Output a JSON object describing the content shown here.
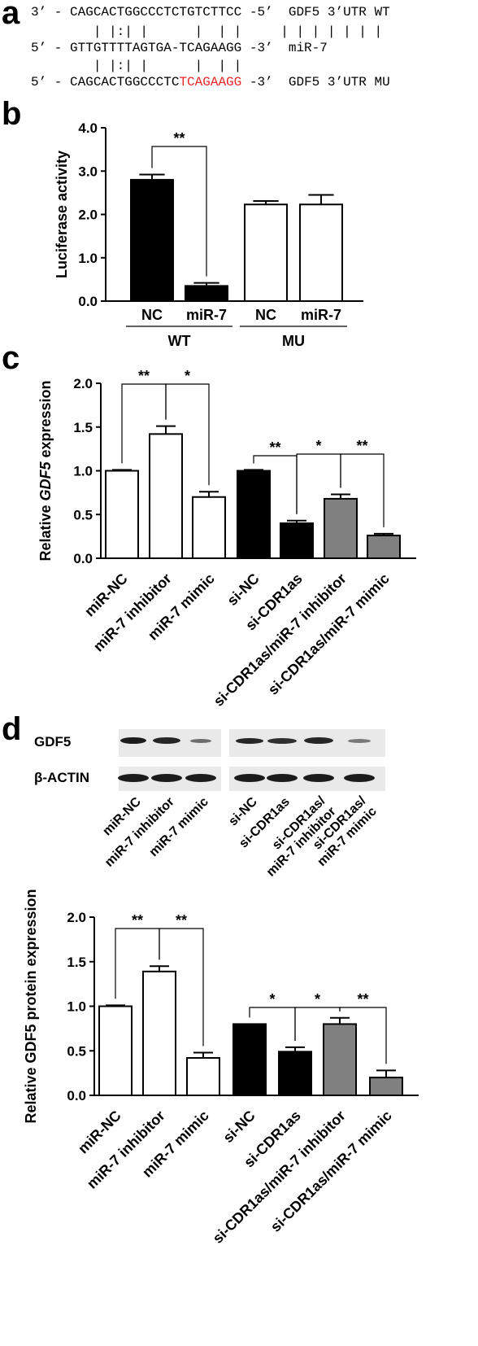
{
  "panel_a": {
    "label": "a",
    "rows": [
      {
        "pre": "3’ - CAGCACTGGCCCTCTGTCTTCC -5’  GDF5 3’UTR WT",
        "red": "",
        "post": ""
      },
      {
        "pre": "        | |:| |      |  | |     | | | | | | |",
        "red": "",
        "post": ""
      },
      {
        "pre": "5’ - GTTGTTTTAGTGA-TCAGAAGG -3’  miR-7",
        "red": "",
        "post": ""
      },
      {
        "pre": "        | |:| |      |  | |",
        "red": "",
        "post": ""
      },
      {
        "pre": "5’ - CAGCACTGGCCCTC",
        "red": "TCAGAAGG",
        "post": " -3’  GDF5 3’UTR MU"
      }
    ]
  },
  "panel_b": {
    "label": "b"
  },
  "panel_c": {
    "label": "c"
  },
  "panel_d": {
    "label": "d",
    "blot_rows": [
      "GDF5",
      "β-ACTIN"
    ],
    "blot_lanes": [
      "miR-NC",
      "miR-7 inhibitor",
      "miR-7 mimic",
      "si-NC",
      "si-CDR1as",
      "si-CDR1as/\nmiR-7 inhibitor",
      "si-CDR1as/\nmiR-7 mimic"
    ]
  },
  "chart_data": [
    {
      "type": "bar",
      "id": "b",
      "categories": [
        "NC",
        "miR-7",
        "NC",
        "miR-7"
      ],
      "groups": [
        {
          "label": "WT",
          "members": [
            0,
            1
          ]
        },
        {
          "label": "MU",
          "members": [
            2,
            3
          ]
        }
      ],
      "values": [
        2.8,
        0.35,
        2.23,
        2.23
      ],
      "errors": [
        0.12,
        0.07,
        0.08,
        0.22
      ],
      "colors": [
        "#000000",
        "#000000",
        "#ffffff",
        "#ffffff"
      ],
      "ylabel": "Luciferase activity",
      "ylim": [
        0,
        4.0
      ],
      "yticks": [
        "0.0",
        "1.0",
        "2.0",
        "3.0",
        "4.0"
      ],
      "significance": [
        {
          "from": 0,
          "to": 1,
          "label": "**"
        }
      ]
    },
    {
      "type": "bar",
      "id": "c",
      "categories": [
        "miR-NC",
        "miR-7 inhibitor",
        "miR-7 mimic",
        "si-NC",
        "si-CDR1as",
        "si-CDR1as/miR-7 inhibitor",
        "si-CDR1as/miR-7 mimic"
      ],
      "values": [
        1.0,
        1.42,
        0.7,
        1.0,
        0.4,
        0.68,
        0.26
      ],
      "errors": [
        0.01,
        0.09,
        0.06,
        0.01,
        0.03,
        0.05,
        0.02
      ],
      "colors": [
        "#ffffff",
        "#ffffff",
        "#ffffff",
        "#000000",
        "#000000",
        "#808080",
        "#808080"
      ],
      "ylabel_pre": "Relative ",
      "ylabel_italic": "GDF5",
      "ylabel_post": " expression",
      "ylim": [
        0,
        2.0
      ],
      "yticks": [
        "0.0",
        "0.5",
        "1.0",
        "1.5",
        "2.0"
      ],
      "significance": [
        {
          "from": 0,
          "to": 1,
          "label": "**"
        },
        {
          "from": 1,
          "to": 2,
          "label": "*"
        },
        {
          "from": 3,
          "to": 4,
          "label": "**"
        },
        {
          "from": 4,
          "to": 5,
          "label": "*"
        },
        {
          "from": 5,
          "to": 6,
          "label": "**"
        }
      ]
    },
    {
      "type": "bar",
      "id": "d",
      "categories": [
        "miR-NC",
        "miR-7 inhibitor",
        "miR-7 mimic",
        "si-NC",
        "si-CDR1as",
        "si-CDR1as/miR-7 inhibitor",
        "si-CDR1as/miR-7 mimic"
      ],
      "values": [
        1.0,
        1.39,
        0.42,
        0.8,
        0.49,
        0.8,
        0.2
      ],
      "errors": [
        0.01,
        0.06,
        0.06,
        0.0,
        0.05,
        0.07,
        0.08
      ],
      "colors": [
        "#ffffff",
        "#ffffff",
        "#ffffff",
        "#000000",
        "#000000",
        "#808080",
        "#808080"
      ],
      "ylabel": "Relative GDF5 protein expression",
      "ylim": [
        0,
        2.0
      ],
      "yticks": [
        "0.0",
        "0.5",
        "1.0",
        "1.5",
        "2.0"
      ],
      "significance": [
        {
          "from": 0,
          "to": 1,
          "label": "**"
        },
        {
          "from": 1,
          "to": 2,
          "label": "**"
        },
        {
          "from": 3,
          "to": 4,
          "label": "*"
        },
        {
          "from": 4,
          "to": 5,
          "label": "*"
        },
        {
          "from": 5,
          "to": 6,
          "label": "**"
        }
      ]
    }
  ]
}
